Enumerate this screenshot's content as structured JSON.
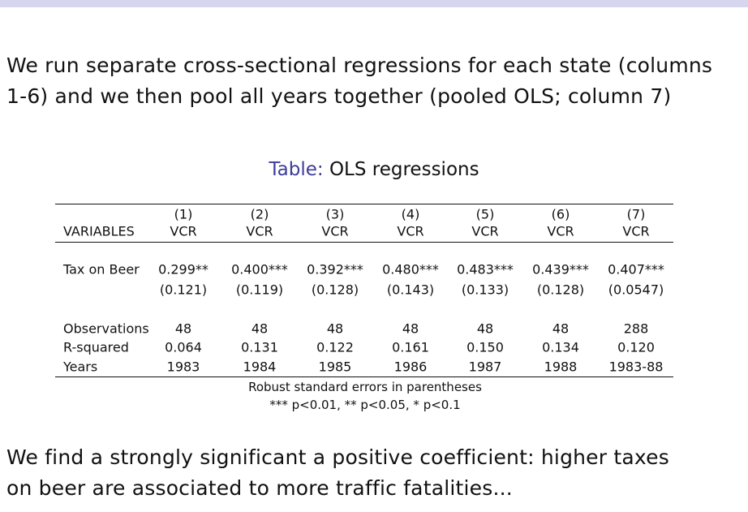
{
  "header_bar_color": "#d6d6ef",
  "intro": {
    "line1": "We run separate cross-sectional regressions for each state (columns",
    "line2": "1-6) and we then pool all years together (pooled OLS; column 7)"
  },
  "table": {
    "caption_label": "Table:",
    "caption_text": " OLS regressions",
    "caption_label_color": "#3d3d99",
    "columns": [
      {
        "num": "(1)",
        "dep": "VCR"
      },
      {
        "num": "(2)",
        "dep": "VCR"
      },
      {
        "num": "(3)",
        "dep": "VCR"
      },
      {
        "num": "(4)",
        "dep": "VCR"
      },
      {
        "num": "(5)",
        "dep": "VCR"
      },
      {
        "num": "(6)",
        "dep": "VCR"
      },
      {
        "num": "(7)",
        "dep": "VCR"
      }
    ],
    "variables_header": "VARIABLES",
    "rows": [
      {
        "label": "Tax on Beer",
        "values": [
          "0.299**",
          "0.400***",
          "0.392***",
          "0.480***",
          "0.483***",
          "0.439***",
          "0.407***"
        ]
      },
      {
        "label": "",
        "values": [
          "(0.121)",
          "(0.119)",
          "(0.128)",
          "(0.143)",
          "(0.133)",
          "(0.128)",
          "(0.0547)"
        ]
      },
      {
        "label": "Observations",
        "values": [
          "48",
          "48",
          "48",
          "48",
          "48",
          "48",
          "288"
        ]
      },
      {
        "label": "R-squared",
        "values": [
          "0.064",
          "0.131",
          "0.122",
          "0.161",
          "0.150",
          "0.134",
          "0.120"
        ]
      },
      {
        "label": "Years",
        "values": [
          "1983",
          "1984",
          "1985",
          "1986",
          "1987",
          "1988",
          "1983-88"
        ]
      }
    ],
    "notes": [
      "Robust standard errors in parentheses",
      "*** p<0.01, ** p<0.05, * p<0.1"
    ]
  },
  "conclusion": {
    "line1": "We find a strongly significant a positive coefficient: higher taxes",
    "line2": "on beer are associated to more traffic fatalities..."
  }
}
